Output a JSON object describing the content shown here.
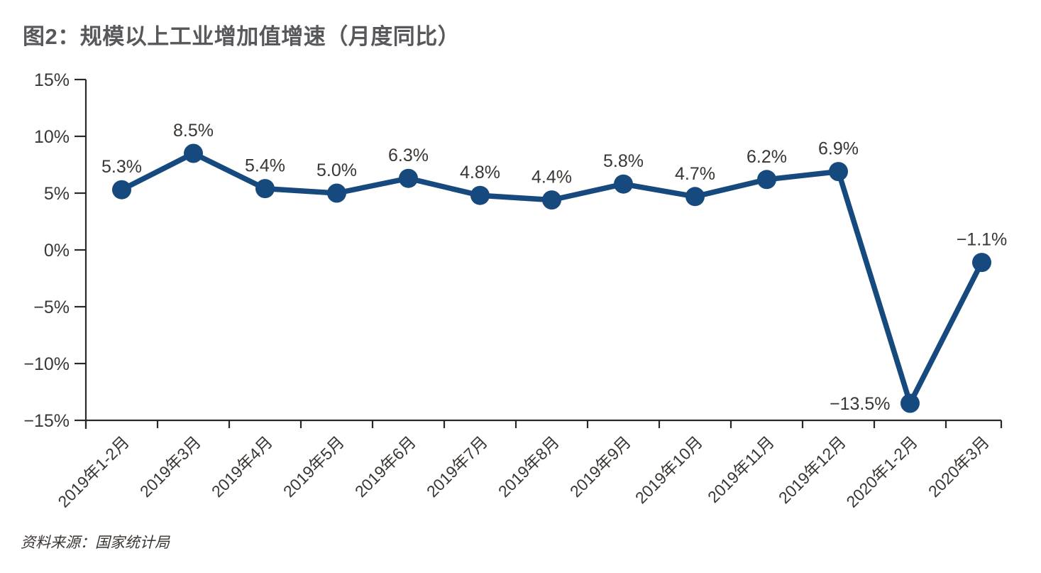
{
  "colors": {
    "line": "#164a7e",
    "marker": "#164a7e",
    "title": "#57585b",
    "axis": "#2b2825",
    "text": "#3a3633",
    "background": "#ffffff"
  },
  "chart_data": {
    "type": "line",
    "title": "图2：规模以上工业增加值增速（月度同比）",
    "source": "资料来源：国家统计局",
    "categories": [
      "2019年1-2月",
      "2019年3月",
      "2019年4月",
      "2019年5月",
      "2019年6月",
      "2019年7月",
      "2019年8月",
      "2019年9月",
      "2019年10月",
      "2019年11月",
      "2019年12月",
      "2020年1-2月",
      "2020年3月"
    ],
    "values": [
      5.3,
      8.5,
      5.4,
      5.0,
      6.3,
      4.8,
      4.4,
      5.8,
      4.7,
      6.2,
      6.9,
      -13.5,
      -1.1
    ],
    "point_labels": [
      "5.3%",
      "8.5%",
      "5.4%",
      "5.0%",
      "6.3%",
      "4.8%",
      "4.4%",
      "5.8%",
      "4.7%",
      "6.2%",
      "6.9%",
      "−13.5%",
      "−1.1%"
    ],
    "label_placements": [
      "above",
      "above",
      "above",
      "above",
      "above",
      "above",
      "above",
      "above",
      "above",
      "above",
      "above",
      "left",
      "above"
    ],
    "y_ticks": {
      "values": [
        15,
        10,
        5,
        0,
        -5,
        -10,
        -15
      ],
      "labels": [
        "15%",
        "10%",
        "5%",
        "0%",
        "−5%",
        "−10%",
        "−15%"
      ]
    },
    "ylim": [
      -15,
      15
    ],
    "xlabel": "",
    "ylabel": "",
    "grid": false,
    "legend": false,
    "marker": "circle",
    "x_label_rotation_deg": -45
  }
}
